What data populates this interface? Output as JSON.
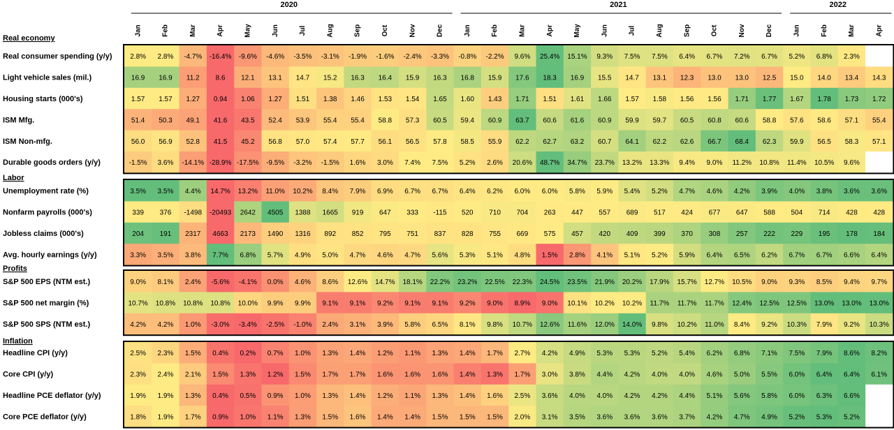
{
  "chart_data": {
    "type": "heatmap",
    "years": [
      {
        "label": "2020",
        "start": 0,
        "count": 12
      },
      {
        "label": "2021",
        "start": 12,
        "count": 12
      },
      {
        "label": "2022",
        "start": 24,
        "count": 4
      }
    ],
    "columns": [
      "Jan",
      "Feb",
      "Mar",
      "Apr",
      "May",
      "Jun",
      "Jul",
      "Aug",
      "Sep",
      "Oct",
      "Nov",
      "Dec",
      "Jan",
      "Feb",
      "Mar",
      "Apr",
      "May",
      "Jun",
      "Jul",
      "Aug",
      "Sep",
      "Oct",
      "Nov",
      "Dec",
      "Jan",
      "Feb",
      "Mar",
      "Apr"
    ],
    "sections": [
      {
        "name": "Real economy",
        "rows": [
          {
            "label": "Real consumer spending (y/y)",
            "values": [
              "2.8%",
              "2.8%",
              "-4.7%",
              "-16.4%",
              "-9.6%",
              "-4.6%",
              "-3.5%",
              "-3.1%",
              "-1.9%",
              "-1.6%",
              "-2.4%",
              "-3.3%",
              "-0.8%",
              "-2.2%",
              "9.6%",
              "25.4%",
              "15.1%",
              "9.3%",
              "7.5%",
              "7.5%",
              "6.4%",
              "6.7%",
              "7.2%",
              "6.7%",
              "5.2%",
              "6.8%",
              "2.3%",
              ""
            ]
          },
          {
            "label": "Light vehicle sales (mil.)",
            "values": [
              "16.9",
              "16.9",
              "11.2",
              "8.6",
              "12.1",
              "13.1",
              "14.7",
              "15.2",
              "16.3",
              "16.4",
              "15.9",
              "16.3",
              "16.8",
              "15.9",
              "17.6",
              "18.3",
              "16.9",
              "15.5",
              "14.7",
              "13.1",
              "12.3",
              "13.0",
              "13.0",
              "12.5",
              "15.0",
              "14.0",
              "13.4",
              "14.3"
            ]
          },
          {
            "label": "Housing starts (000's)",
            "values": [
              "1.57",
              "1.57",
              "1.27",
              "0.94",
              "1.06",
              "1.27",
              "1.51",
              "1.38",
              "1.46",
              "1.53",
              "1.54",
              "1.65",
              "1.60",
              "1.43",
              "1.71",
              "1.51",
              "1.61",
              "1.66",
              "1.57",
              "1.58",
              "1.56",
              "1.56",
              "1.71",
              "1.77",
              "1.67",
              "1.78",
              "1.73",
              "1.72"
            ]
          },
          {
            "label": "ISM Mfg.",
            "values": [
              "51.4",
              "50.3",
              "49.1",
              "41.6",
              "43.5",
              "52.4",
              "53.9",
              "55.4",
              "55.4",
              "58.8",
              "57.3",
              "60.5",
              "59.4",
              "60.9",
              "63.7",
              "60.6",
              "61.6",
              "60.9",
              "59.9",
              "59.7",
              "60.5",
              "60.8",
              "60.6",
              "58.8",
              "57.6",
              "58.6",
              "57.1",
              "55.4"
            ]
          },
          {
            "label": "ISM Non-mfg.",
            "values": [
              "56.0",
              "56.9",
              "52.8",
              "41.5",
              "45.2",
              "56.8",
              "57.0",
              "57.4",
              "57.7",
              "56.1",
              "56.5",
              "57.8",
              "58.5",
              "55.9",
              "62.2",
              "62.7",
              "63.2",
              "60.7",
              "64.1",
              "62.2",
              "62.6",
              "66.7",
              "68.4",
              "62.3",
              "59.9",
              "56.5",
              "58.3",
              "57.1"
            ]
          },
          {
            "label": "Durable goods orders (y/y)",
            "values": [
              "-1.5%",
              "3.6%",
              "-14.1%",
              "-28.9%",
              "-17.5%",
              "-9.5%",
              "-3.2%",
              "-1.5%",
              "1.6%",
              "3.0%",
              "7.4%",
              "7.5%",
              "5.2%",
              "2.6%",
              "20.6%",
              "48.7%",
              "34.7%",
              "23.7%",
              "13.2%",
              "13.3%",
              "9.4%",
              "9.0%",
              "11.2%",
              "10.8%",
              "11.4%",
              "10.5%",
              "9.6%",
              ""
            ]
          }
        ]
      },
      {
        "name": "Labor",
        "rows": [
          {
            "label": "Unemployment rate (%)",
            "values": [
              "3.5%",
              "3.5%",
              "4.4%",
              "14.7%",
              "13.2%",
              "11.0%",
              "10.2%",
              "8.4%",
              "7.9%",
              "6.9%",
              "6.7%",
              "6.7%",
              "6.4%",
              "6.2%",
              "6.0%",
              "6.0%",
              "5.8%",
              "5.9%",
              "5.4%",
              "5.2%",
              "4.7%",
              "4.6%",
              "4.2%",
              "3.9%",
              "4.0%",
              "3.8%",
              "3.6%",
              "3.6%"
            ]
          },
          {
            "label": "Nonfarm payrolls (000's)",
            "values": [
              "339",
              "376",
              "-1498",
              "-20493",
              "2642",
              "4505",
              "1388",
              "1665",
              "919",
              "647",
              "333",
              "-115",
              "520",
              "710",
              "704",
              "263",
              "447",
              "557",
              "689",
              "517",
              "424",
              "677",
              "647",
              "588",
              "504",
              "714",
              "428",
              "428"
            ]
          },
          {
            "label": "Jobless claims (000's)",
            "values": [
              "204",
              "191",
              "2317",
              "4663",
              "2173",
              "1490",
              "1316",
              "892",
              "852",
              "795",
              "751",
              "837",
              "828",
              "755",
              "669",
              "575",
              "457",
              "420",
              "409",
              "399",
              "370",
              "308",
              "257",
              "222",
              "229",
              "195",
              "178",
              "184"
            ]
          },
          {
            "label": "Avg. hourly earnings (y/y)",
            "values": [
              "3.3%",
              "3.5%",
              "3.8%",
              "7.7%",
              "6.8%",
              "5.7%",
              "4.9%",
              "5.0%",
              "4.7%",
              "4.6%",
              "4.7%",
              "5.6%",
              "5.3%",
              "5.1%",
              "4.8%",
              "1.5%",
              "2.8%",
              "4.1%",
              "5.1%",
              "5.2%",
              "5.9%",
              "6.4%",
              "6.5%",
              "6.2%",
              "6.7%",
              "6.7%",
              "6.6%",
              "6.4%"
            ]
          }
        ]
      },
      {
        "name": "Profits",
        "rows": [
          {
            "label": "S&P 500 EPS (NTM est.)",
            "values": [
              "9.0%",
              "8.1%",
              "2.4%",
              "-5.6%",
              "-4.1%",
              "0.0%",
              "4.6%",
              "8.6%",
              "12.6%",
              "14.7%",
              "18.1%",
              "22.2%",
              "23.2%",
              "22.5%",
              "22.3%",
              "24.5%",
              "23.5%",
              "21.9%",
              "20.2%",
              "17.9%",
              "15.7%",
              "12.7%",
              "10.5%",
              "9.0%",
              "9.3%",
              "8.5%",
              "9.4%",
              "9.7%"
            ]
          },
          {
            "label": "S&P 500 net margin (%)",
            "values": [
              "10.7%",
              "10.8%",
              "10.8%",
              "10.8%",
              "10.0%",
              "9.9%",
              "9.9%",
              "9.1%",
              "9.1%",
              "9.2%",
              "9.1%",
              "9.1%",
              "9.2%",
              "9.0%",
              "8.9%",
              "9.0%",
              "10.1%",
              "10.2%",
              "10.2%",
              "11.7%",
              "11.7%",
              "11.7%",
              "12.4%",
              "12.5%",
              "12.5%",
              "13.0%",
              "13.0%",
              "13.0%"
            ]
          },
          {
            "label": "S&P 500 SPS (NTM est.)",
            "values": [
              "4.2%",
              "4.2%",
              "1.0%",
              "-3.0%",
              "-3.4%",
              "-2.5%",
              "-1.0%",
              "2.4%",
              "3.1%",
              "3.9%",
              "5.8%",
              "6.5%",
              "8.1%",
              "9.8%",
              "10.7%",
              "12.6%",
              "11.6%",
              "12.0%",
              "14.0%",
              "9.8%",
              "10.2%",
              "11.0%",
              "8.4%",
              "9.2%",
              "10.3%",
              "7.9%",
              "9.2%",
              "10.3%"
            ]
          }
        ]
      },
      {
        "name": "Inflation",
        "rows": [
          {
            "label": "Headline CPI (y/y)",
            "values": [
              "2.5%",
              "2.3%",
              "1.5%",
              "0.4%",
              "0.2%",
              "0.7%",
              "1.0%",
              "1.3%",
              "1.4%",
              "1.2%",
              "1.1%",
              "1.3%",
              "1.4%",
              "1.7%",
              "2.7%",
              "4.2%",
              "4.9%",
              "5.3%",
              "5.3%",
              "5.2%",
              "5.4%",
              "6.2%",
              "6.8%",
              "7.1%",
              "7.5%",
              "7.9%",
              "8.6%",
              "8.2%"
            ]
          },
          {
            "label": "Core CPI (y/y)",
            "values": [
              "2.3%",
              "2.4%",
              "2.1%",
              "1.5%",
              "1.3%",
              "1.2%",
              "1.5%",
              "1.7%",
              "1.7%",
              "1.6%",
              "1.6%",
              "1.6%",
              "1.4%",
              "1.3%",
              "1.7%",
              "3.0%",
              "3.8%",
              "4.4%",
              "4.2%",
              "4.0%",
              "4.0%",
              "4.6%",
              "5.0%",
              "5.5%",
              "6.0%",
              "6.4%",
              "6.4%",
              "6.1%"
            ]
          },
          {
            "label": "Headline PCE deflator (y/y)",
            "values": [
              "1.9%",
              "1.9%",
              "1.3%",
              "0.4%",
              "0.5%",
              "0.9%",
              "1.0%",
              "1.3%",
              "1.4%",
              "1.2%",
              "1.1%",
              "1.3%",
              "1.4%",
              "1.6%",
              "2.5%",
              "3.6%",
              "4.0%",
              "4.0%",
              "4.2%",
              "4.2%",
              "4.4%",
              "5.1%",
              "5.6%",
              "5.8%",
              "6.0%",
              "6.3%",
              "6.6%",
              ""
            ]
          },
          {
            "label": "Core PCE deflator (y/y)",
            "values": [
              "1.8%",
              "1.9%",
              "1.7%",
              "0.9%",
              "1.0%",
              "1.1%",
              "1.3%",
              "1.5%",
              "1.6%",
              "1.4%",
              "1.4%",
              "1.5%",
              "1.5%",
              "1.5%",
              "2.0%",
              "3.1%",
              "3.5%",
              "3.6%",
              "3.6%",
              "3.6%",
              "3.7%",
              "4.2%",
              "4.7%",
              "4.9%",
              "5.2%",
              "5.3%",
              "5.2%",
              ""
            ]
          }
        ]
      }
    ],
    "colors": {
      "low": "#f8696b",
      "mid": "#ffeb84",
      "high": "#63be7b",
      "frame": "#000000",
      "blank": "#ffffff"
    }
  }
}
